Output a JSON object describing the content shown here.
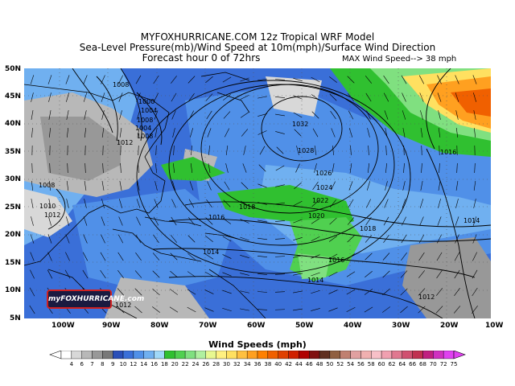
{
  "title": {
    "line1": "MYFOXHURRICANE.COM 12z Tropical WRF Model",
    "line2": "Sea-Level Pressure(mb)/Wind Speed at 10m(mph)/Surface Wind Direction",
    "line3": "Forecast hour 0 of 72hrs",
    "max_wind": "MAX Wind Speed--> 38 mph"
  },
  "logo": "myFOXHURRICANE.com",
  "axes": {
    "lat_labels": [
      "50N",
      "45N",
      "40N",
      "35N",
      "30N",
      "25N",
      "20N",
      "15N",
      "10N",
      "5N"
    ],
    "lon_labels": [
      "100W",
      "90W",
      "80W",
      "70W",
      "60W",
      "50W",
      "40W",
      "30W",
      "20W",
      "10W"
    ]
  },
  "isobars": [
    "1032",
    "1028",
    "1026",
    "1024",
    "1022",
    "1020",
    "1018",
    "1018",
    "1016",
    "1016",
    "1014",
    "1014",
    "1012",
    "1012",
    "1010",
    "1008",
    "1008",
    "1012",
    "1008",
    "1004",
    "1000",
    "1004",
    "1008",
    "1016",
    "1014",
    "1012"
  ],
  "legend": {
    "title": "Wind Speeds (mph)",
    "labels": [
      "4",
      "6",
      "7",
      "8",
      "9",
      "10",
      "12",
      "14",
      "16",
      "18",
      "20",
      "22",
      "24",
      "26",
      "28",
      "30",
      "32",
      "34",
      "36",
      "38",
      "40",
      "42",
      "44",
      "46",
      "48",
      "50",
      "52",
      "54",
      "56",
      "58",
      "60",
      "62",
      "64",
      "66",
      "68",
      "70",
      "72",
      "75"
    ],
    "colors": [
      "#ffffff",
      "#d8d8d8",
      "#b8b8b8",
      "#989898",
      "#787878",
      "#2a4fb8",
      "#3a6fd8",
      "#5090e8",
      "#70b0f0",
      "#a0d8f8",
      "#30c030",
      "#50d050",
      "#80e080",
      "#b0f0a0",
      "#e8f890",
      "#fff080",
      "#ffe060",
      "#ffc040",
      "#ffa020",
      "#ff8000",
      "#f06000",
      "#e04000",
      "#d02000",
      "#b00000",
      "#801010",
      "#603020",
      "#906040",
      "#c08070",
      "#e0a0a0",
      "#f0b0b0",
      "#f8c0c8",
      "#f0a0b0",
      "#e07890",
      "#d05070",
      "#c03050",
      "#c02080",
      "#d030c0",
      "#e040f0"
    ]
  }
}
